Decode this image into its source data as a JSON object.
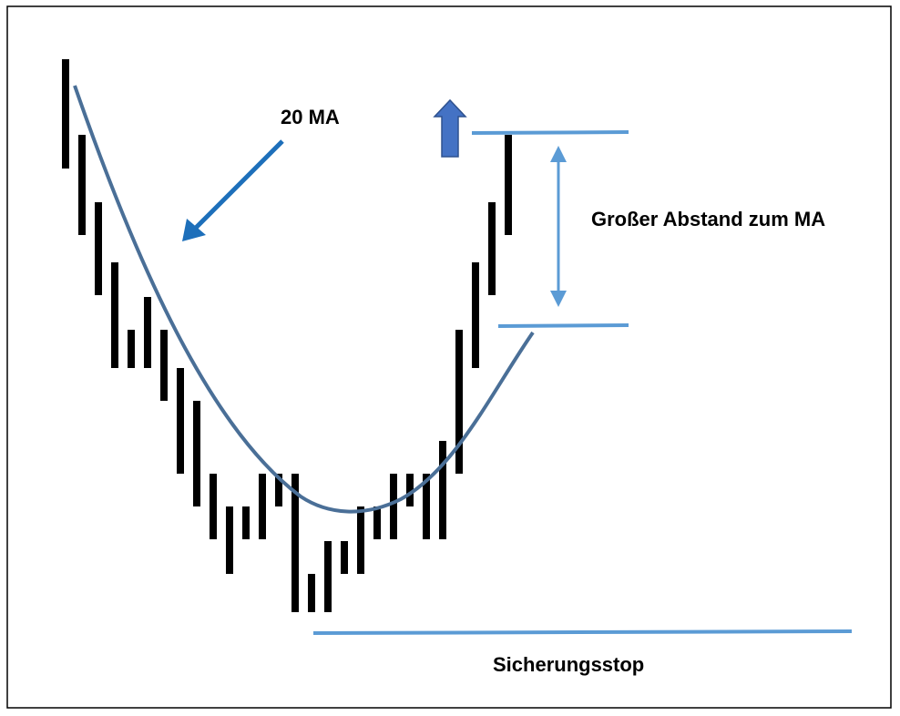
{
  "labels": {
    "ma": "20 MA",
    "distance": "Großer Abstand zum MA",
    "stop": "Sicherungsstop"
  }
}
